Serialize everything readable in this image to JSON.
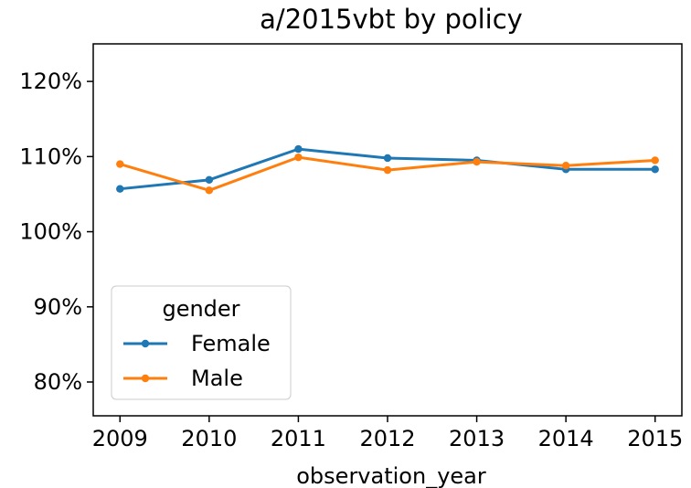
{
  "chart_data": {
    "type": "line",
    "title": "a/2015vbt by policy",
    "xlabel": "observation_year",
    "ylabel": "",
    "x": [
      2009,
      2010,
      2011,
      2012,
      2013,
      2014,
      2015
    ],
    "x_tick_labels": [
      "2009",
      "2010",
      "2011",
      "2012",
      "2013",
      "2014",
      "2015"
    ],
    "ylim": [
      75.5,
      125
    ],
    "y_ticks": [
      80,
      90,
      100,
      110,
      120
    ],
    "y_tick_labels": [
      "80%",
      "90%",
      "100%",
      "110%",
      "120%"
    ],
    "grid": false,
    "legend": {
      "title": "gender",
      "placement": "lower-left"
    },
    "series": [
      {
        "name": "Female",
        "color": "#1f77b4",
        "values": [
          105.7,
          106.9,
          111.0,
          109.8,
          109.5,
          108.3,
          108.3
        ]
      },
      {
        "name": "Male",
        "color": "#ff7f0e",
        "values": [
          109.0,
          105.5,
          109.9,
          108.2,
          109.3,
          108.8,
          109.5
        ]
      }
    ]
  }
}
